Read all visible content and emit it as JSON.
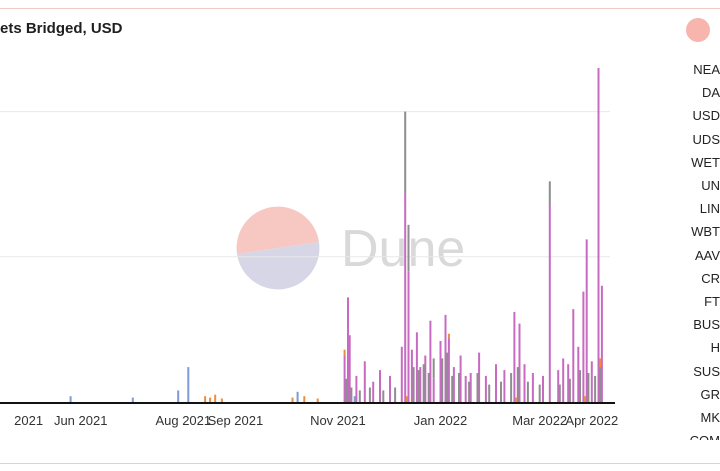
{
  "header": {
    "title": "ets Bridged, USD"
  },
  "watermark": {
    "text": "Dune",
    "colors": {
      "top": "#f7c8c1",
      "bottom": "#d7d6e6",
      "text": "#d9d9d9"
    }
  },
  "legend": {
    "items": [
      "NEA",
      "DA",
      "USD",
      "UDS",
      "WET",
      "UN",
      "LIN",
      "WBT",
      "AAV",
      "CR",
      "FT",
      "BUS",
      "H",
      "SUS",
      "GR",
      "MK",
      "COM"
    ]
  },
  "colors": {
    "main_series": "#c76bc2",
    "gray_series": "#8e8e8e",
    "orange_series": "#ef8c3a",
    "blue_series": "#7d9bd6",
    "baseline": "#111111",
    "grid": "#e8e8e8"
  },
  "chart_data": {
    "type": "bar",
    "stacked": true,
    "title": "ets Bridged, USD",
    "x_type": "date",
    "x_range": [
      "2021-04-14",
      "2022-04-16"
    ],
    "x_tick_labels": [
      {
        "date": "2021-05-01",
        "label": "2021"
      },
      {
        "date": "2021-06-01",
        "label": "Jun 2021"
      },
      {
        "date": "2021-08-01",
        "label": "Aug 2021"
      },
      {
        "date": "2021-09-01",
        "label": "Sep 2021"
      },
      {
        "date": "2021-11-01",
        "label": "Nov 2021"
      },
      {
        "date": "2022-01-01",
        "label": "Jan 2022"
      },
      {
        "date": "2022-03-01",
        "label": "Mar 2022"
      },
      {
        "date": "2022-04-01",
        "label": "Apr 2022"
      }
    ],
    "y_axis_labels_visible": false,
    "ylim": [
      0,
      1.15
    ],
    "gridlines": [
      0.5,
      1.0
    ],
    "series": [
      {
        "color": "#c76bc2",
        "points": [
          [
            "2021-11-05",
            0.16
          ],
          [
            "2021-11-07",
            0.36
          ],
          [
            "2021-11-08",
            0.23
          ],
          [
            "2021-11-12",
            0.09
          ],
          [
            "2021-11-17",
            0.14
          ],
          [
            "2021-11-22",
            0.07
          ],
          [
            "2021-11-26",
            0.11
          ],
          [
            "2021-12-02",
            0.09
          ],
          [
            "2021-12-09",
            0.19
          ],
          [
            "2021-12-11",
            0.72
          ],
          [
            "2021-12-13",
            0.45
          ],
          [
            "2021-12-15",
            0.18
          ],
          [
            "2021-12-18",
            0.24
          ],
          [
            "2021-12-20",
            0.12
          ],
          [
            "2021-12-23",
            0.16
          ],
          [
            "2021-12-26",
            0.28
          ],
          [
            "2021-12-28",
            0.08
          ],
          [
            "2022-01-01",
            0.21
          ],
          [
            "2022-01-04",
            0.3
          ],
          [
            "2022-01-06",
            0.22
          ],
          [
            "2022-01-09",
            0.12
          ],
          [
            "2022-01-13",
            0.16
          ],
          [
            "2022-01-16",
            0.09
          ],
          [
            "2022-01-19",
            0.1
          ],
          [
            "2022-01-24",
            0.17
          ],
          [
            "2022-01-28",
            0.09
          ],
          [
            "2022-02-03",
            0.13
          ],
          [
            "2022-02-08",
            0.11
          ],
          [
            "2022-02-14",
            0.31
          ],
          [
            "2022-02-17",
            0.27
          ],
          [
            "2022-02-20",
            0.13
          ],
          [
            "2022-02-25",
            0.1
          ],
          [
            "2022-03-03",
            0.09
          ],
          [
            "2022-03-07",
            0.68
          ],
          [
            "2022-03-12",
            0.11
          ],
          [
            "2022-03-15",
            0.15
          ],
          [
            "2022-03-18",
            0.13
          ],
          [
            "2022-03-21",
            0.32
          ],
          [
            "2022-03-24",
            0.19
          ],
          [
            "2022-03-27",
            0.38
          ],
          [
            "2022-03-29",
            0.56
          ],
          [
            "2022-04-01",
            0.14
          ],
          [
            "2022-04-05",
            1.15
          ],
          [
            "2022-04-07",
            0.4
          ]
        ]
      },
      {
        "color": "#8e8e8e",
        "points": [
          [
            "2021-11-06",
            0.08
          ],
          [
            "2021-11-09",
            0.05
          ],
          [
            "2021-11-14",
            0.04
          ],
          [
            "2021-11-20",
            0.05
          ],
          [
            "2021-11-28",
            0.04
          ],
          [
            "2021-12-05",
            0.05
          ],
          [
            "2021-12-11",
            0.28
          ],
          [
            "2021-12-13",
            0.16
          ],
          [
            "2021-12-16",
            0.12
          ],
          [
            "2021-12-19",
            0.11
          ],
          [
            "2021-12-22",
            0.13
          ],
          [
            "2021-12-25",
            0.1
          ],
          [
            "2021-12-28",
            0.07
          ],
          [
            "2022-01-02",
            0.15
          ],
          [
            "2022-01-05",
            0.17
          ],
          [
            "2022-01-08",
            0.09
          ],
          [
            "2022-01-12",
            0.1
          ],
          [
            "2022-01-18",
            0.07
          ],
          [
            "2022-01-23",
            0.1
          ],
          [
            "2022-01-30",
            0.06
          ],
          [
            "2022-02-06",
            0.07
          ],
          [
            "2022-02-12",
            0.1
          ],
          [
            "2022-02-16",
            0.12
          ],
          [
            "2022-02-22",
            0.07
          ],
          [
            "2022-03-01",
            0.06
          ],
          [
            "2022-03-07",
            0.08
          ],
          [
            "2022-03-13",
            0.06
          ],
          [
            "2022-03-19",
            0.08
          ],
          [
            "2022-03-25",
            0.11
          ],
          [
            "2022-03-30",
            0.1
          ],
          [
            "2022-04-03",
            0.09
          ],
          [
            "2022-04-06",
            0.12
          ]
        ]
      },
      {
        "color": "#ef8c3a",
        "points": [
          [
            "2021-08-14",
            0.02
          ],
          [
            "2021-08-17",
            0.015
          ],
          [
            "2021-08-20",
            0.025
          ],
          [
            "2021-08-24",
            0.012
          ],
          [
            "2021-10-05",
            0.015
          ],
          [
            "2021-10-12",
            0.02
          ],
          [
            "2021-10-20",
            0.012
          ],
          [
            "2021-11-05",
            0.02
          ],
          [
            "2021-12-12",
            0.02
          ],
          [
            "2022-01-06",
            0.015
          ],
          [
            "2022-02-15",
            0.015
          ],
          [
            "2022-03-28",
            0.02
          ],
          [
            "2022-04-06",
            0.03
          ]
        ]
      },
      {
        "color": "#7d9bd6",
        "points": [
          [
            "2021-05-26",
            0.02
          ],
          [
            "2021-07-02",
            0.015
          ],
          [
            "2021-07-29",
            0.04
          ],
          [
            "2021-08-04",
            0.12
          ],
          [
            "2021-10-08",
            0.035
          ],
          [
            "2021-11-11",
            0.02
          ]
        ]
      }
    ]
  }
}
